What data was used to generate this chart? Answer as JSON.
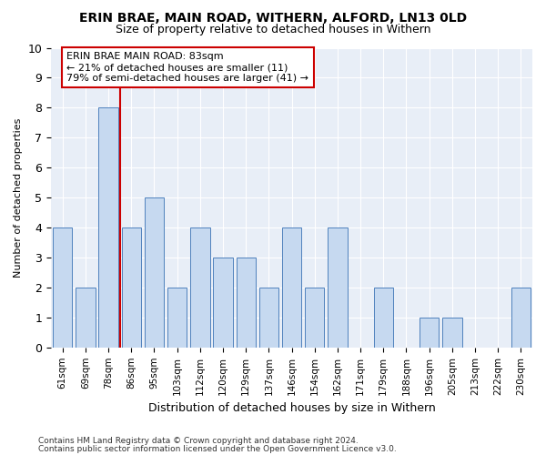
{
  "title1": "ERIN BRAE, MAIN ROAD, WITHERN, ALFORD, LN13 0LD",
  "title2": "Size of property relative to detached houses in Withern",
  "xlabel": "Distribution of detached houses by size in Withern",
  "ylabel": "Number of detached properties",
  "categories": [
    "61sqm",
    "69sqm",
    "78sqm",
    "86sqm",
    "95sqm",
    "103sqm",
    "112sqm",
    "120sqm",
    "129sqm",
    "137sqm",
    "146sqm",
    "154sqm",
    "162sqm",
    "171sqm",
    "179sqm",
    "188sqm",
    "196sqm",
    "205sqm",
    "213sqm",
    "222sqm",
    "230sqm"
  ],
  "values": [
    4,
    2,
    8,
    4,
    5,
    2,
    4,
    3,
    3,
    2,
    4,
    2,
    4,
    0,
    2,
    0,
    1,
    1,
    0,
    0,
    2
  ],
  "bar_color": "#c6d9f0",
  "bar_edge_color": "#4f81bd",
  "highlight_bar_index": 2,
  "highlight_line_color": "#cc0000",
  "annotation_text": "ERIN BRAE MAIN ROAD: 83sqm\n← 21% of detached houses are smaller (11)\n79% of semi-detached houses are larger (41) →",
  "annotation_box_color": "#cc0000",
  "ylim": [
    0,
    10
  ],
  "yticks": [
    0,
    1,
    2,
    3,
    4,
    5,
    6,
    7,
    8,
    9,
    10
  ],
  "footer1": "Contains HM Land Registry data © Crown copyright and database right 2024.",
  "footer2": "Contains public sector information licensed under the Open Government Licence v3.0.",
  "bg_color": "#ffffff",
  "plot_bg_color": "#e8eef7"
}
